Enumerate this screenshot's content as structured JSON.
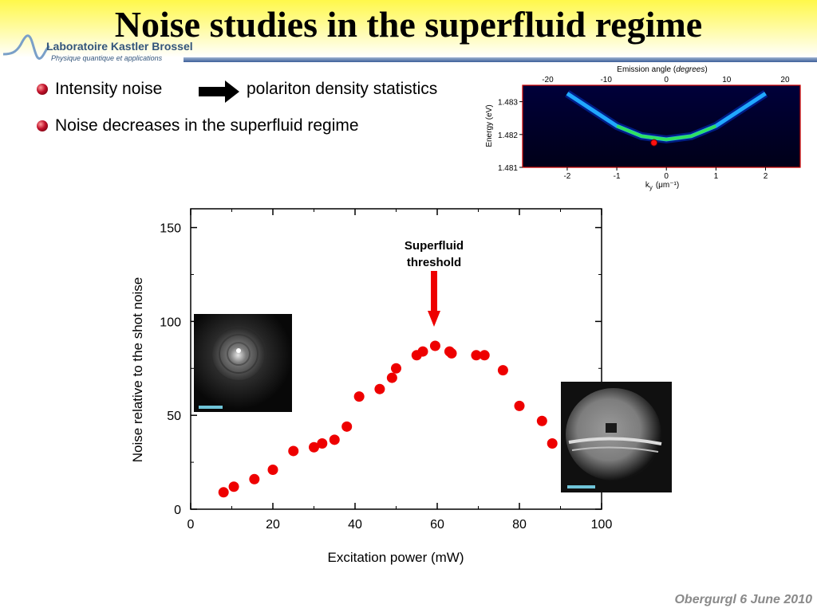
{
  "slide": {
    "title": "Noise studies in the superfluid regime",
    "logo": {
      "name": "Laboratoire Kastler Brossel",
      "subtitle": "Physique quantique et applications"
    },
    "bullets": [
      {
        "text": "Intensity noise"
      },
      {
        "text": "Noise decreases in the superfluid regime"
      }
    ],
    "arrow_target": "polariton density statistics",
    "footer": "Obergurgl 6 June 2010",
    "colors": {
      "bullet": "#c0102a",
      "points": "#ee0000",
      "accent_bar": "#3d5f9a"
    }
  },
  "chart_data": [
    {
      "type": "scatter",
      "title": "",
      "xlabel": "Excitation power (mW)",
      "ylabel": "Noise relative to the shot noise",
      "xlim": [
        0,
        100
      ],
      "ylim": [
        0,
        160
      ],
      "xticks": [
        0,
        20,
        40,
        60,
        80,
        100
      ],
      "yticks": [
        0,
        50,
        100,
        150
      ],
      "grid": false,
      "series": [
        {
          "x": [
            8,
            10.5,
            15.5,
            20,
            25,
            30,
            32,
            35,
            38,
            41,
            46,
            49,
            50,
            55,
            56.5,
            59.5,
            63,
            63.5,
            69.5,
            71.5,
            76,
            80,
            85.5,
            88
          ],
          "y": [
            9,
            12,
            16,
            21,
            31,
            33,
            35,
            37,
            44,
            60,
            64,
            70,
            75,
            82,
            84,
            87,
            84,
            83,
            82,
            82,
            74,
            55,
            47,
            35
          ]
        }
      ],
      "annotations": [
        {
          "text_line1": "Superfluid",
          "text_line2": "threshold",
          "x": 60
        }
      ]
    },
    {
      "type": "heatmap",
      "title": "",
      "xlabel": "k",
      "xlabel_sub": "y",
      "xlabel_unit": "(μm⁻¹)",
      "ylabel": "Energy (eV)",
      "top_axis_label": "Emission angle (",
      "top_axis_label_italic": "degrees",
      "top_axis_label_end": ")",
      "xlim": [
        -2.9,
        2.7
      ],
      "ylim": [
        1.481,
        1.4835
      ],
      "xticks": [
        -2,
        -1,
        0,
        1,
        2
      ],
      "yticks": [
        1.481,
        1.482,
        1.483
      ],
      "yticklabels": [
        "1.481",
        "1.482",
        "1.483"
      ],
      "top_ticks": [
        -20,
        -10,
        0,
        10,
        20
      ],
      "dispersion": {
        "k": [
          -2.0,
          -1.0,
          -0.5,
          0,
          0.5,
          1.0,
          2.0
        ],
        "E": [
          1.48325,
          1.48226,
          1.48195,
          1.48185,
          1.48195,
          1.48226,
          1.48325
        ]
      },
      "marker": {
        "k": -0.25,
        "E": 1.48175
      }
    }
  ]
}
